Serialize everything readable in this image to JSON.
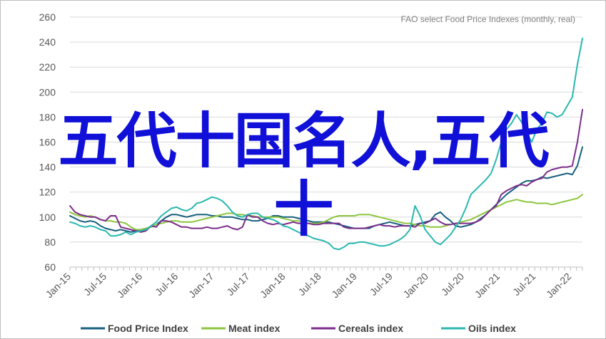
{
  "chart_data": {
    "type": "line",
    "title": "FAO select Food Price Indexes (monthly, real)",
    "xlabel": "",
    "ylabel": "",
    "ylim": [
      60,
      260
    ],
    "yticks": [
      60,
      80,
      100,
      120,
      140,
      160,
      180,
      200,
      220,
      240,
      260
    ],
    "xticks": [
      "Jan-15",
      "Jul-15",
      "Jan-16",
      "Jul-16",
      "Jan-17",
      "Jul-17",
      "Jan-18",
      "Jul-18",
      "Jan-19",
      "Jul-19",
      "Jan-20",
      "Jul-20",
      "Jan-21",
      "Jul-21",
      "Jan-22"
    ],
    "x_start": "Jan-15",
    "x_step": "monthly",
    "legend_position": "bottom",
    "grid": "horizontal",
    "series": [
      {
        "name": "Food Price Index",
        "color": "#17607f",
        "values": [
          101,
          99,
          97,
          96,
          97,
          96,
          93,
          91,
          90,
          89,
          90,
          89,
          88,
          89,
          90,
          91,
          92,
          94,
          97,
          100,
          102,
          102,
          101,
          100,
          101,
          102,
          102,
          102,
          101,
          101,
          100,
          100,
          100,
          99,
          98,
          98,
          97,
          97,
          98,
          99,
          101,
          101,
          100,
          100,
          100,
          99,
          98,
          97,
          96,
          96,
          96,
          96,
          95,
          94,
          93,
          92,
          91,
          91,
          91,
          91,
          93,
          94,
          95,
          96,
          95,
          94,
          93,
          93,
          94,
          95,
          96,
          97,
          102,
          104,
          100,
          97,
          93,
          92,
          93,
          94,
          96,
          99,
          102,
          106,
          110,
          114,
          118,
          121,
          124,
          127,
          129,
          129,
          130,
          132,
          131,
          132,
          133,
          134,
          135,
          134,
          141,
          156
        ]
      },
      {
        "name": "Meat index",
        "color": "#8cc63f",
        "values": [
          104,
          102,
          101,
          100,
          101,
          100,
          98,
          97,
          97,
          96,
          96,
          95,
          92,
          90,
          90,
          91,
          92,
          94,
          95,
          96,
          97,
          97,
          96,
          96,
          96,
          97,
          98,
          99,
          100,
          101,
          102,
          103,
          103,
          102,
          102,
          101,
          101,
          100,
          100,
          100,
          100,
          100,
          99,
          98,
          97,
          97,
          96,
          95,
          95,
          95,
          96,
          98,
          100,
          101,
          101,
          101,
          101,
          102,
          102,
          102,
          101,
          100,
          99,
          98,
          97,
          96,
          95,
          95,
          94,
          93,
          93,
          92,
          92,
          92,
          93,
          94,
          95,
          96,
          97,
          98,
          100,
          102,
          104,
          106,
          108,
          110,
          112,
          113,
          114,
          113,
          112,
          112,
          111,
          111,
          111,
          110,
          111,
          112,
          113,
          114,
          115,
          118
        ]
      },
      {
        "name": "Cereals index",
        "color": "#7b2d8b",
        "values": [
          109,
          104,
          102,
          101,
          100,
          100,
          98,
          97,
          101,
          101,
          92,
          91,
          90,
          89,
          88,
          89,
          93,
          92,
          97,
          97,
          96,
          94,
          92,
          92,
          91,
          91,
          91,
          92,
          91,
          91,
          92,
          93,
          91,
          90,
          92,
          102,
          100,
          100,
          97,
          95,
          94,
          95,
          94,
          95,
          96,
          95,
          95,
          95,
          94,
          94,
          95,
          95,
          95,
          95,
          92,
          91,
          91,
          91,
          91,
          92,
          93,
          94,
          93,
          93,
          92,
          93,
          93,
          93,
          92,
          95,
          95,
          97,
          99,
          96,
          94,
          94,
          95,
          95,
          95,
          95,
          96,
          98,
          102,
          106,
          109,
          118,
          121,
          123,
          125,
          126,
          125,
          128,
          130,
          131,
          136,
          138,
          139,
          140,
          140,
          141,
          160,
          186
        ]
      },
      {
        "name": "Oils index",
        "color": "#2ab7b0",
        "values": [
          96,
          95,
          93,
          92,
          93,
          92,
          90,
          89,
          85,
          85,
          86,
          88,
          86,
          88,
          89,
          90,
          93,
          96,
          101,
          104,
          107,
          108,
          106,
          105,
          107,
          111,
          112,
          114,
          116,
          115,
          113,
          109,
          104,
          101,
          100,
          102,
          103,
          103,
          100,
          99,
          98,
          96,
          93,
          92,
          90,
          88,
          86,
          85,
          83,
          82,
          81,
          79,
          75,
          74,
          76,
          79,
          79,
          80,
          80,
          79,
          78,
          77,
          77,
          78,
          80,
          82,
          85,
          90,
          109,
          101,
          90,
          85,
          80,
          78,
          82,
          86,
          92,
          98,
          107,
          118,
          122,
          126,
          130,
          135,
          146,
          160,
          170,
          175,
          182,
          176,
          168,
          160,
          170,
          175,
          184,
          183,
          180,
          182,
          189,
          196,
          222,
          243
        ]
      }
    ]
  },
  "overlay_text": {
    "line1": "五代十国名人,五代",
    "line2": "十"
  }
}
